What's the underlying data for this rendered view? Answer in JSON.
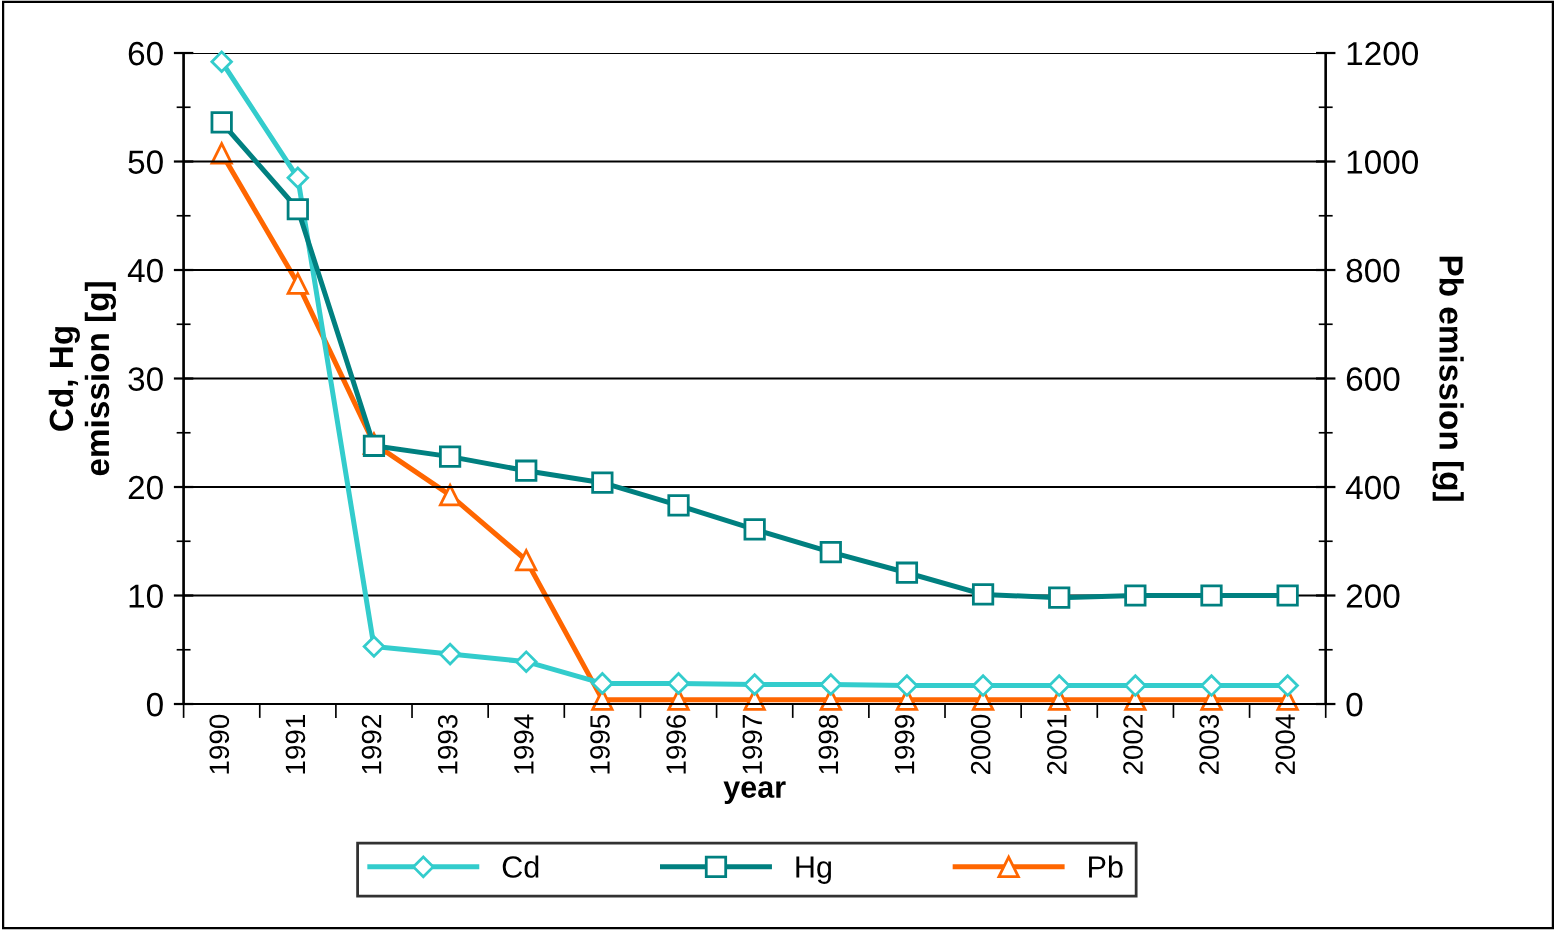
{
  "chart_data": {
    "type": "line",
    "xlabel": "year",
    "ylabel": "Cd, Hg\nemission [g]",
    "y2label": "Pb emission [g]",
    "categories": [
      "1990",
      "1991",
      "1992",
      "1993",
      "1994",
      "1995",
      "1996",
      "1997",
      "1998",
      "1999",
      "2000",
      "2001",
      "2002",
      "2003",
      "2004"
    ],
    "series": [
      {
        "name": "Cd",
        "color": "#33cccc",
        "marker": "diamond",
        "values": [
          59.2,
          48.5,
          5.3,
          4.6,
          3.9,
          1.9,
          1.9,
          1.8,
          1.8,
          1.7,
          1.7,
          1.7,
          1.7,
          1.7,
          1.7
        ]
      },
      {
        "name": "Hg",
        "color": "#008080",
        "marker": "square",
        "values": [
          53.6,
          45.6,
          23.8,
          22.8,
          21.5,
          20.4,
          18.3,
          16.1,
          14.0,
          12.1,
          10.1,
          9.8,
          10.0,
          10.0,
          10.0
        ]
      },
      {
        "name": "Pb",
        "color": "#ff6600",
        "marker": "triangle",
        "axis": "y2",
        "values": [
          1015,
          775,
          480,
          385,
          265,
          8,
          8,
          8,
          8,
          8,
          8,
          8,
          8,
          8,
          8
        ]
      }
    ],
    "ylim": [
      0,
      60
    ],
    "yticks": [
      0,
      10,
      20,
      30,
      40,
      50,
      60
    ],
    "y2lim": [
      0,
      1200
    ],
    "y2ticks": [
      0,
      200,
      400,
      600,
      800,
      1000,
      1200
    ],
    "grid": "y",
    "legend": "bottom"
  }
}
